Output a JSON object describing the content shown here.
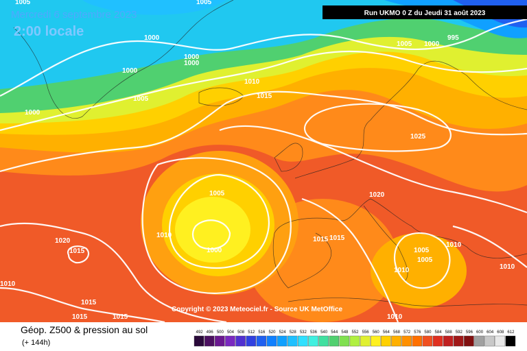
{
  "header": {
    "date": "Mercredi 6 septembre 2023",
    "time": "2:00 locale",
    "run": "Run UKMO 0 Z du Jeudi 31 août 2023"
  },
  "isobar_labels": [
    "1000",
    "1000",
    "1000",
    "1000",
    "1010",
    "1005",
    "1015",
    "1000",
    "1005",
    "1000",
    "995",
    "1025",
    "1020",
    "1005",
    "1010",
    "1000",
    "1015",
    "1015",
    "1020",
    "1015",
    "1005",
    "1005",
    "1010",
    "1010",
    "1010",
    "1010",
    "1015",
    "1015",
    "1015",
    "1010",
    "1005",
    "1005"
  ],
  "copyright": "Copyright © 2023 Meteociel.fr - Source UK MetOffice",
  "footer": {
    "title": "Géop. Z500 & pression au sol",
    "subtitle": "(+ 144h)"
  },
  "legend": {
    "values": [
      492,
      496,
      500,
      504,
      508,
      512,
      516,
      520,
      524,
      528,
      532,
      536,
      540,
      544,
      548,
      552,
      556,
      560,
      564,
      568,
      572,
      576,
      580,
      584,
      588,
      592,
      596,
      600,
      604,
      608,
      612
    ],
    "colors": [
      "#2a0a3a",
      "#4b1060",
      "#6a1890",
      "#7a28c0",
      "#5030d0",
      "#3040e0",
      "#2060f0",
      "#1080ff",
      "#10a0ff",
      "#20c0ff",
      "#30e0ff",
      "#40f0e0",
      "#40e0a0",
      "#50d070",
      "#80e050",
      "#b0f040",
      "#e0f030",
      "#fff020",
      "#ffd000",
      "#ffb000",
      "#ff9000",
      "#ff7000",
      "#f05020",
      "#e03020",
      "#c02020",
      "#a01818",
      "#801010",
      "#a0a0a0",
      "#c8c8c8",
      "#e8e8e8",
      "#000000"
    ]
  }
}
